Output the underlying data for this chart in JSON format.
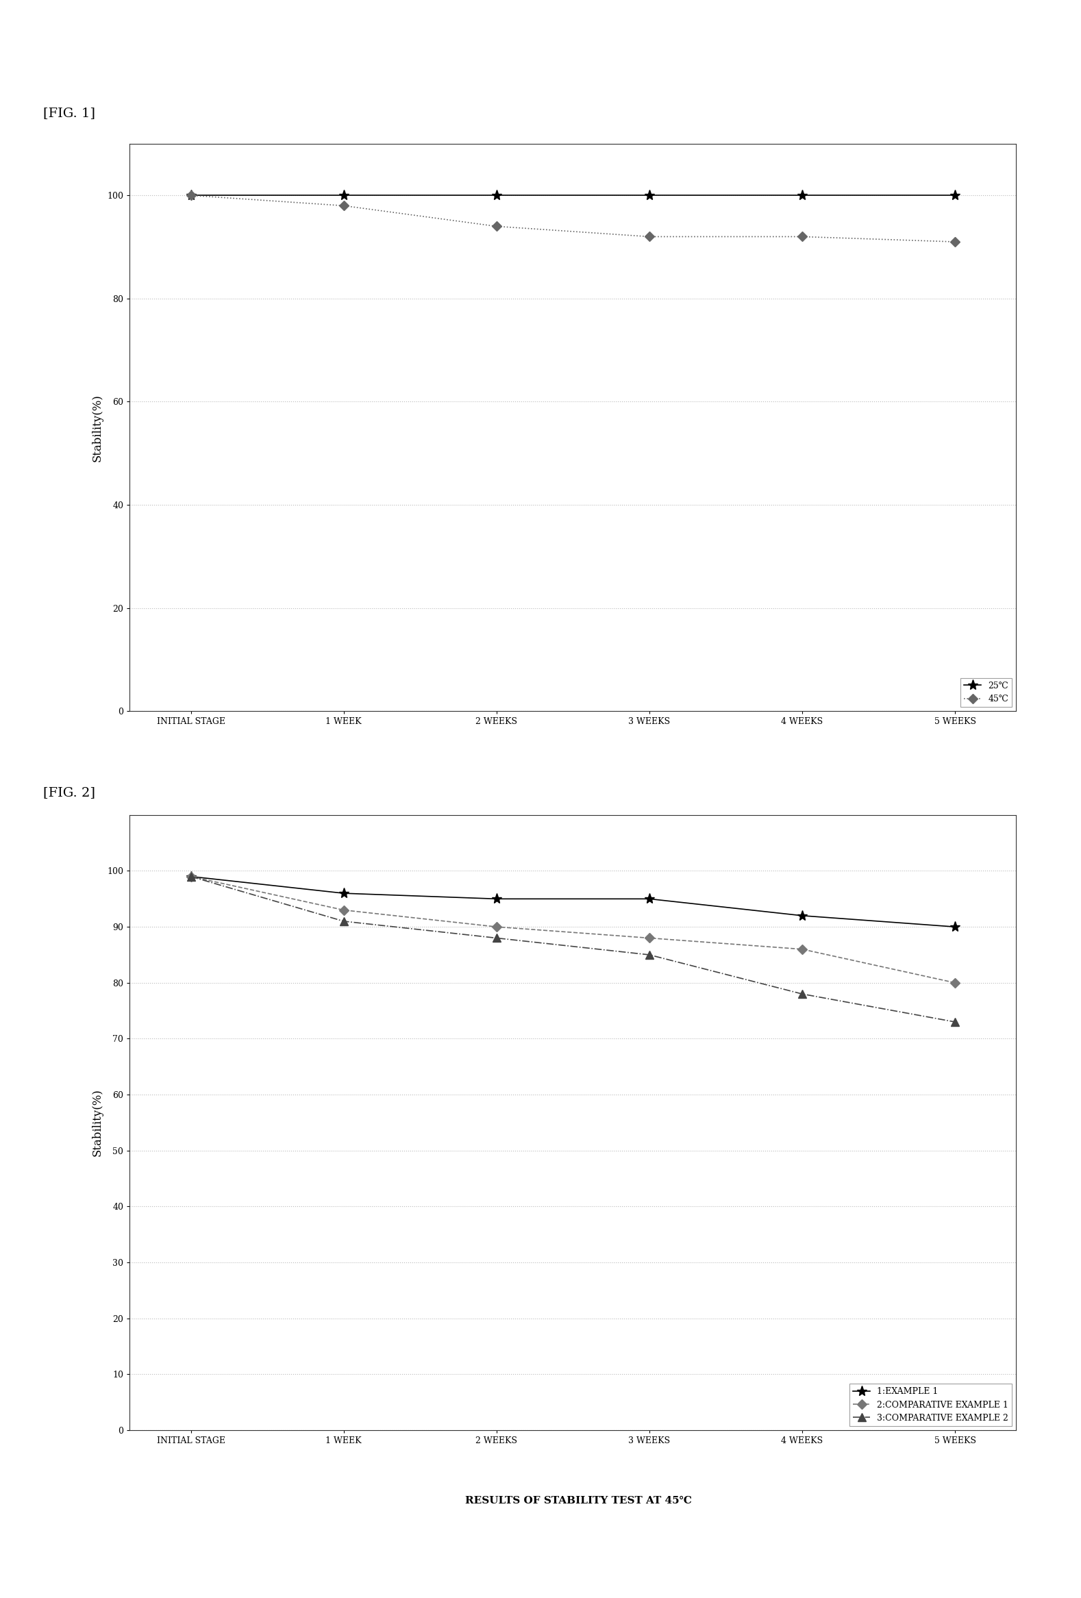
{
  "fig1": {
    "title": "[FIG. 1]",
    "x_labels": [
      "INITIAL STAGE",
      "1 WEEK",
      "2 WEEKS",
      "3 WEEKS",
      "4 WEEKS",
      "5 WEEKS"
    ],
    "x_values": [
      0,
      1,
      2,
      3,
      4,
      5
    ],
    "series": [
      {
        "label": "25℃",
        "values": [
          100,
          100,
          100,
          100,
          100,
          100
        ],
        "color": "#000000",
        "linestyle": "-",
        "marker": "*",
        "markersize": 11
      },
      {
        "label": "45℃",
        "values": [
          100,
          98,
          94,
          92,
          92,
          91
        ],
        "color": "#666666",
        "linestyle": ":",
        "marker": "D",
        "markersize": 7
      }
    ],
    "ylabel": "Stability(%)",
    "ylim": [
      0,
      110
    ],
    "yticks": [
      0,
      20,
      40,
      60,
      80,
      100
    ]
  },
  "fig2": {
    "title": "[FIG. 2]",
    "x_labels": [
      "INITIAL STAGE",
      "1 WEEK",
      "2 WEEKS",
      "3 WEEKS",
      "4 WEEKS",
      "5 WEEKS"
    ],
    "x_values": [
      0,
      1,
      2,
      3,
      4,
      5
    ],
    "series": [
      {
        "label": "1:EXAMPLE 1",
        "short_label": "1",
        "values": [
          99,
          96,
          95,
          95,
          92,
          90
        ],
        "color": "#000000",
        "linestyle": "-",
        "marker": "*",
        "markersize": 11
      },
      {
        "label": "2:COMPARATIVE EXAMPLE 1",
        "short_label": "2",
        "values": [
          99,
          93,
          90,
          88,
          86,
          80
        ],
        "color": "#777777",
        "linestyle": "--",
        "marker": "D",
        "markersize": 7
      },
      {
        "label": "3:COMPARATIVE EXAMPLE 2",
        "short_label": "3",
        "values": [
          99,
          91,
          88,
          85,
          78,
          73
        ],
        "color": "#444444",
        "linestyle": "-.",
        "marker": "^",
        "markersize": 9
      }
    ],
    "ylabel": "Stability(%)",
    "ylim": [
      0,
      110
    ],
    "yticks": [
      0,
      10,
      20,
      30,
      40,
      50,
      60,
      70,
      80,
      90,
      100
    ],
    "xlabel_bottom": "RESULTS OF STABILITY TEST AT 45℃"
  },
  "background_color": "#ffffff",
  "plot_bg_color": "#ffffff",
  "grid_color": "#bbbbbb",
  "fig_label_fontsize": 14,
  "axis_fontsize": 12,
  "tick_fontsize": 9,
  "legend_fontsize": 9,
  "linewidth": 1.2
}
